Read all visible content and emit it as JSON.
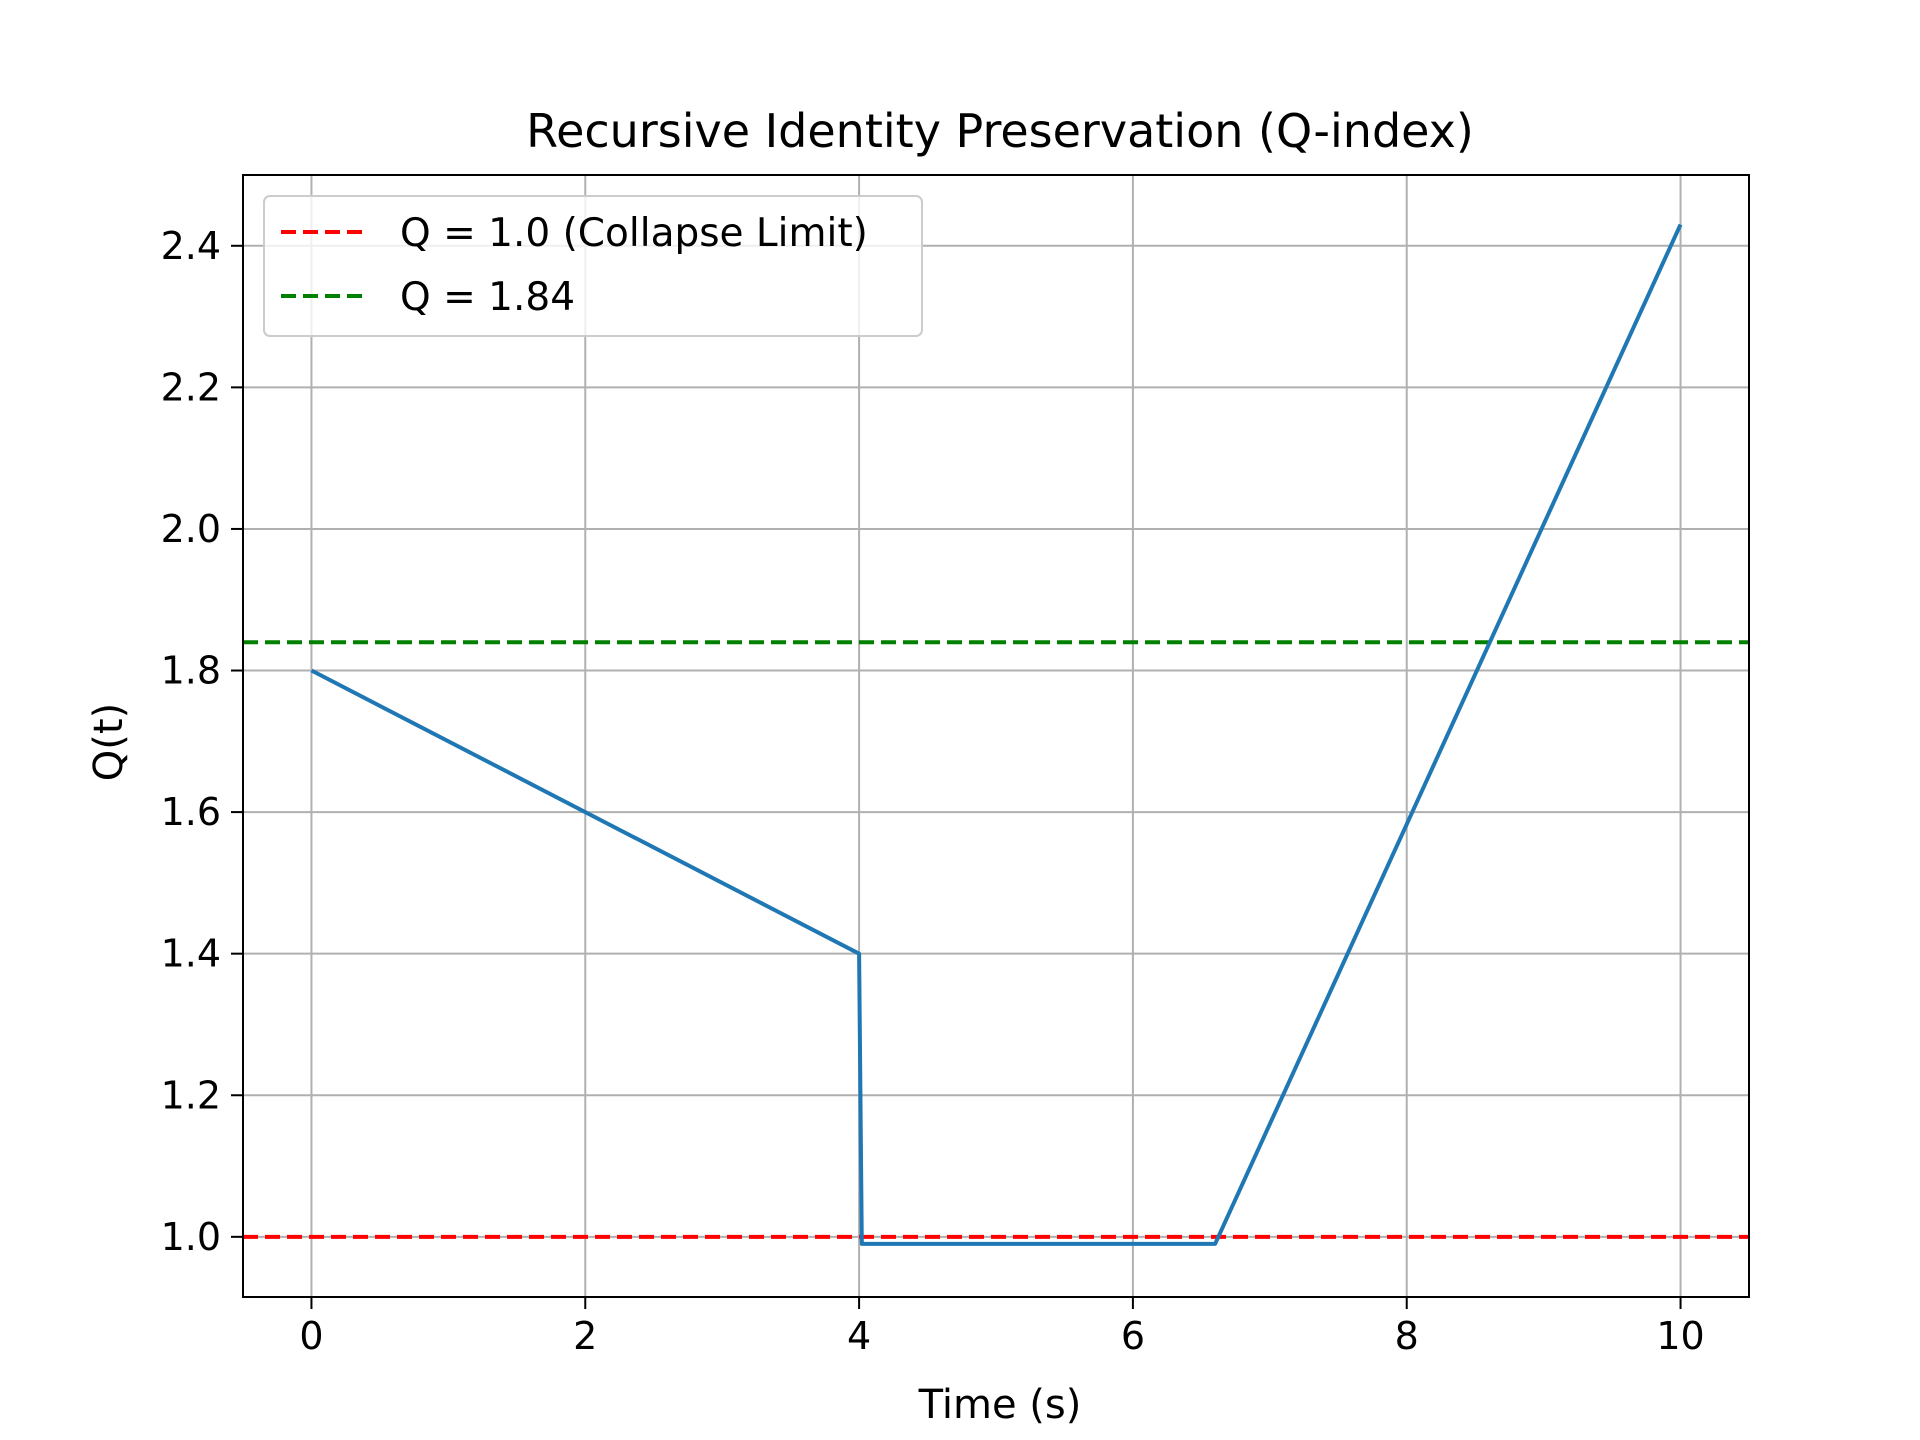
{
  "chart_data": {
    "type": "line",
    "title": "Recursive Identity Preservation (Q-index)",
    "xlabel": "Time (s)",
    "ylabel": "Q(t)",
    "xlim": [
      -0.5,
      10.5
    ],
    "ylim": [
      0.915,
      2.5
    ],
    "grid": true,
    "legend_position": "upper-left",
    "xticks": [
      0,
      2,
      4,
      6,
      8,
      10
    ],
    "xtick_labels": [
      "0",
      "2",
      "4",
      "6",
      "8",
      "10"
    ],
    "yticks": [
      1.0,
      1.2,
      1.4,
      1.6,
      1.8,
      2.0,
      2.2,
      2.4
    ],
    "ytick_labels": [
      "1.0",
      "1.2",
      "1.4",
      "1.6",
      "1.8",
      "2.0",
      "2.2",
      "2.4"
    ],
    "series": [
      {
        "color": "#1f77b4",
        "x": [
          0,
          4,
          4.02,
          6.6,
          10
        ],
        "y": [
          1.8,
          1.4,
          0.99,
          0.99,
          2.43
        ]
      }
    ],
    "hlines": [
      {
        "name": "Q = 1.0 (Collapse Limit)",
        "y": 1.0,
        "color": "#ff0000",
        "style": "dashed"
      },
      {
        "name": "Q = 1.84",
        "y": 1.84,
        "color": "#008000",
        "style": "dashed"
      }
    ]
  }
}
